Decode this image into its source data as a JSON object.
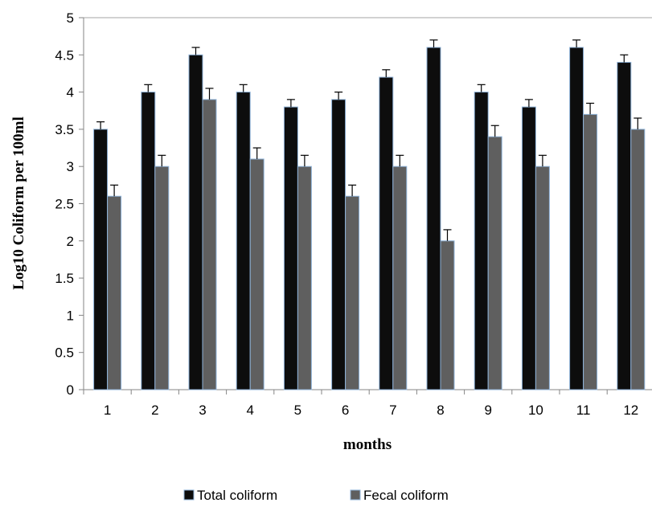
{
  "chart_data": {
    "type": "bar",
    "title": "",
    "xlabel": "months",
    "ylabel": "Log10 Coliform per 100ml",
    "categories": [
      "1",
      "2",
      "3",
      "4",
      "5",
      "6",
      "7",
      "8",
      "9",
      "10",
      "11",
      "12"
    ],
    "ylim": [
      0,
      5
    ],
    "yticks": [
      "0",
      "0.5",
      "1",
      "1.5",
      "2",
      "2.5",
      "3",
      "3.5",
      "4",
      "4.5",
      "5"
    ],
    "grid": false,
    "legend_position": "bottom",
    "error_bars": true,
    "series": [
      {
        "name": "Total coliform",
        "color": "#0d0d0d",
        "values": [
          3.5,
          4.0,
          4.5,
          4.0,
          3.8,
          3.9,
          4.2,
          4.6,
          4.0,
          3.8,
          4.6,
          4.4
        ],
        "errors": [
          0.1,
          0.1,
          0.1,
          0.1,
          0.1,
          0.1,
          0.1,
          0.1,
          0.1,
          0.1,
          0.1,
          0.1
        ]
      },
      {
        "name": "Fecal coliform",
        "color": "#5f5f5f",
        "values": [
          2.6,
          3.0,
          3.9,
          3.1,
          3.0,
          2.6,
          3.0,
          2.0,
          3.4,
          3.0,
          3.7,
          3.5
        ],
        "errors": [
          0.15,
          0.15,
          0.15,
          0.15,
          0.15,
          0.15,
          0.15,
          0.15,
          0.15,
          0.15,
          0.15,
          0.15
        ]
      }
    ]
  }
}
